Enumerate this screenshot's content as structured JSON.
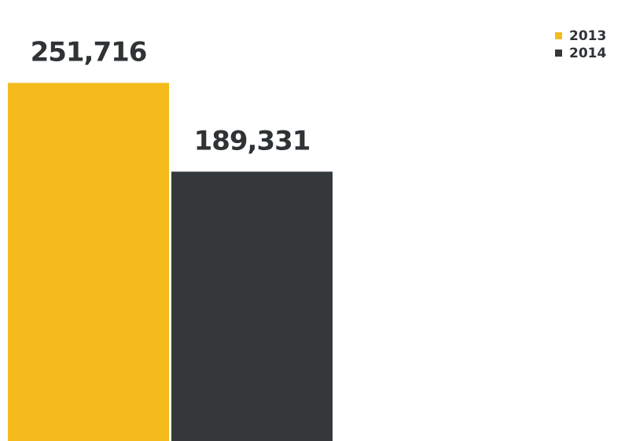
{
  "chart_data": {
    "type": "bar",
    "categories": [
      "2013",
      "2014"
    ],
    "values": [
      251716,
      189331
    ],
    "value_labels": [
      "251,716",
      "189,331"
    ],
    "colors": [
      "#f5bb1d",
      "#34383a"
    ],
    "label_color": "#2f3335",
    "ylim": [
      0,
      310000
    ],
    "legend": {
      "placement": "top-right",
      "entries": [
        {
          "label": "2013",
          "color": "#f5bb1d"
        },
        {
          "label": "2014",
          "color": "#34383a"
        }
      ]
    },
    "grid": false,
    "title": "",
    "xlabel": "",
    "ylabel": ""
  }
}
